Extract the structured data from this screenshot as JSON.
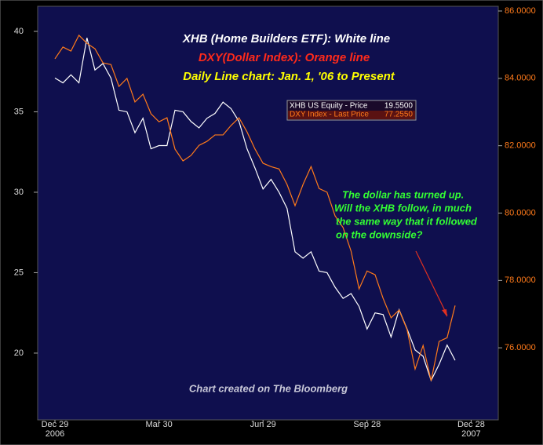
{
  "chart_data": {
    "type": "line",
    "annotations": [
      {
        "text": "XHB (Home Builders ETF): White line",
        "color": "#ffffff"
      },
      {
        "text": "DXY(Dollar Index): Orange line",
        "color": "#ff2a1a"
      },
      {
        "text": "Daily Line chart: Jan. 1, '06 to Present",
        "color": "#ffff00"
      }
    ],
    "note_lines": [
      "The dollar has turned up.",
      "Will the XHB follow, in much",
      "the same way that it followed",
      "on the downside?"
    ],
    "note_color": "#33ff33",
    "credit": "Chart created on The Bloomberg",
    "categories": [
      "Dec 29",
      null,
      null,
      null,
      null,
      null,
      null,
      null,
      null,
      null,
      null,
      null,
      null,
      "Mar 30",
      null,
      null,
      null,
      null,
      null,
      null,
      null,
      null,
      null,
      null,
      null,
      null,
      "Jun 29",
      null,
      null,
      null,
      null,
      null,
      null,
      null,
      null,
      null,
      null,
      null,
      null,
      "Sep 28",
      null,
      null,
      null,
      null,
      null,
      null,
      null,
      null,
      null,
      null,
      null,
      null,
      "Dec 28"
    ],
    "x_year_labels": [
      "2006",
      "2007"
    ],
    "series": [
      {
        "name": "XHB US Equity - Price",
        "legend_value": "19.5500",
        "color": "#ffffff",
        "axis": "y",
        "values": [
          37.1,
          36.8,
          37.3,
          36.8,
          39.6,
          37.6,
          38.0,
          37.1,
          35.1,
          35.0,
          33.7,
          34.6,
          32.7,
          32.9,
          32.9,
          35.1,
          35.0,
          34.4,
          34.0,
          34.6,
          34.9,
          35.6,
          35.2,
          34.4,
          32.7,
          31.5,
          30.2,
          30.8,
          30.0,
          29.0,
          26.3,
          25.9,
          26.3,
          25.1,
          25.0,
          24.1,
          23.4,
          23.7,
          22.9,
          21.5,
          22.5,
          22.4,
          21.0,
          22.7,
          21.5,
          20.2,
          19.8,
          18.3,
          19.3,
          20.5,
          19.55,
          null,
          null
        ]
      },
      {
        "name": "DXY Index - Last Price",
        "legend_value": "77.2550",
        "color": "#ff7a1a",
        "axis": "y2",
        "values": [
          84.58,
          84.93,
          84.81,
          85.28,
          85.04,
          84.88,
          84.46,
          84.41,
          83.76,
          84.0,
          83.3,
          83.53,
          82.95,
          82.71,
          82.83,
          81.9,
          81.55,
          81.71,
          82.01,
          82.13,
          82.32,
          82.32,
          82.6,
          82.83,
          82.41,
          81.9,
          81.48,
          81.38,
          81.31,
          80.85,
          80.22,
          80.85,
          81.38,
          80.73,
          80.62,
          79.92,
          79.57,
          78.87,
          77.75,
          78.28,
          78.17,
          77.47,
          76.89,
          77.12,
          76.54,
          75.37,
          76.07,
          75.02,
          76.19,
          76.3,
          77.255,
          null,
          null
        ]
      }
    ],
    "ylim": [
      15.85,
      41.56
    ],
    "yticks": [
      20,
      25,
      30,
      35,
      40
    ],
    "y2lim": [
      73.86,
      86.14
    ],
    "y2ticks": [
      {
        "value": 76,
        "label": "76.0000"
      },
      {
        "value": 78,
        "label": "78.0000"
      },
      {
        "value": 80,
        "label": "80.0000"
      },
      {
        "value": 82,
        "label": "82.0000"
      },
      {
        "value": 84,
        "label": "84.0000"
      },
      {
        "value": 86,
        "label": "86.0000"
      }
    ]
  }
}
